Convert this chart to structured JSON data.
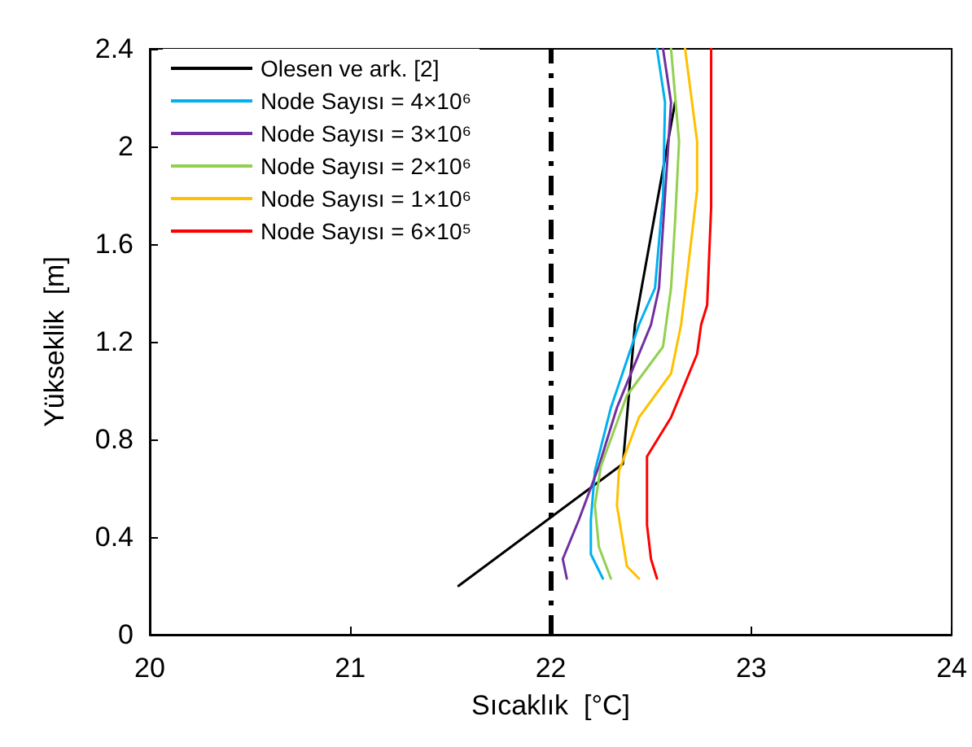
{
  "chart_data": {
    "type": "line",
    "xlabel": "Sıcaklık  [°C]",
    "ylabel": "Yükseklik  [m]",
    "xlim": [
      20,
      24
    ],
    "xticks": [
      20,
      21,
      22,
      23,
      24
    ],
    "ylim": [
      0,
      2.4
    ],
    "yticks": [
      0,
      0.4,
      0.8,
      1.2,
      1.6,
      2,
      2.4
    ],
    "grid": false,
    "legend": "top left",
    "marker": "none",
    "line_style": "solid",
    "ref_lines": [
      {
        "axis": "x",
        "value": 22,
        "color": "#000000",
        "line_style": "dashed"
      }
    ],
    "series": [
      {
        "name": "Olesen ve ark. [2]",
        "color": "#000000",
        "x": [
          21.54,
          22.36,
          22.42,
          22.62
        ],
        "values": [
          0.2,
          0.7,
          1.27,
          2.18
        ]
      },
      {
        "name": "Node Sayısı = 4×10⁶",
        "color": "#00b0f0",
        "x": [
          22.26,
          22.2,
          22.2,
          22.22,
          22.3,
          22.44,
          22.52,
          22.56,
          22.57,
          22.53
        ],
        "values": [
          0.23,
          0.33,
          0.47,
          0.67,
          0.93,
          1.27,
          1.42,
          1.8,
          2.18,
          2.4
        ]
      },
      {
        "name": "Node Sayısı = 3×10⁶",
        "color": "#7030a0",
        "x": [
          22.08,
          22.06,
          22.14,
          22.24,
          22.33,
          22.5,
          22.54,
          22.57,
          22.6,
          22.56
        ],
        "values": [
          0.23,
          0.31,
          0.47,
          0.69,
          0.93,
          1.27,
          1.42,
          1.8,
          2.18,
          2.4
        ]
      },
      {
        "name": "Node Sayısı = 2×10⁶",
        "color": "#92d050",
        "x": [
          22.3,
          22.24,
          22.22,
          22.25,
          22.38,
          22.56,
          22.6,
          22.62,
          22.64,
          22.6
        ],
        "values": [
          0.23,
          0.36,
          0.53,
          0.69,
          0.98,
          1.18,
          1.42,
          1.69,
          2.02,
          2.4
        ]
      },
      {
        "name": "Node Sayısı = 1×10⁶",
        "color": "#ffc000",
        "x": [
          22.44,
          22.38,
          22.36,
          22.33,
          22.34,
          22.44,
          22.6,
          22.65,
          22.68,
          22.73,
          22.73,
          22.67
        ],
        "values": [
          0.23,
          0.28,
          0.38,
          0.53,
          0.67,
          0.89,
          1.07,
          1.27,
          1.47,
          1.82,
          2.02,
          2.4
        ]
      },
      {
        "name": "Node Sayısı = 6×10⁵",
        "color": "#ff0000",
        "x": [
          22.53,
          22.5,
          22.48,
          22.48,
          22.6,
          22.73,
          22.75,
          22.78,
          22.8,
          22.8
        ],
        "values": [
          0.23,
          0.31,
          0.45,
          0.73,
          0.89,
          1.15,
          1.27,
          1.35,
          1.75,
          2.4
        ]
      }
    ]
  }
}
